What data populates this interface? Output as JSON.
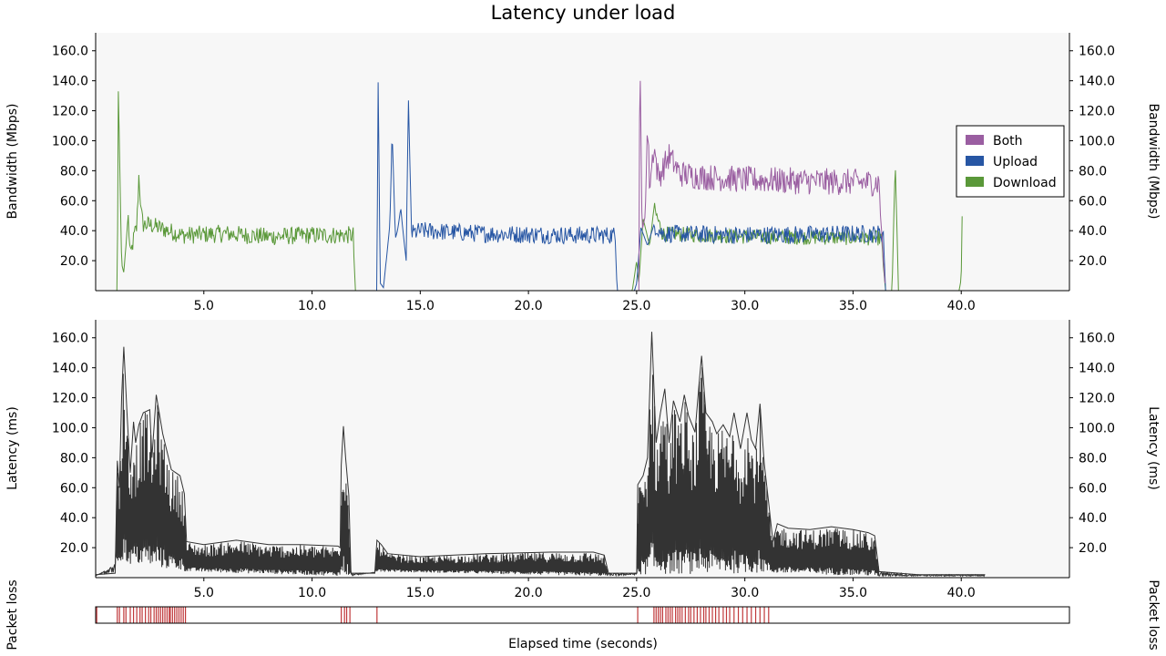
{
  "title": "Latency under load",
  "colors": {
    "plot_bg": "#f7f7f7",
    "both": "#9a5ea1",
    "upload": "#2756a4",
    "download": "#5a9839",
    "latency": "#333333",
    "loss": "#c0393b"
  },
  "chart_data": [
    {
      "type": "line",
      "panel": "bandwidth",
      "ylabel_left": "Bandwidth (Mbps)",
      "ylabel_right": "Bandwidth (Mbps)",
      "xlim": [
        0,
        45
      ],
      "ylim": [
        0,
        172
      ],
      "xticks": [
        "5.0",
        "10.0",
        "15.0",
        "20.0",
        "25.0",
        "30.0",
        "35.0",
        "40.0"
      ],
      "yticks": [
        "20.0",
        "40.0",
        "60.0",
        "80.0",
        "100.0",
        "120.0",
        "140.0",
        "160.0"
      ],
      "legend": {
        "position": "right",
        "entries": [
          "Both",
          "Upload",
          "Download"
        ]
      },
      "series": [
        {
          "name": "Download",
          "color": "download",
          "points": [
            [
              0,
              0
            ],
            [
              1.0,
              0
            ],
            [
              1.05,
              133
            ],
            [
              1.2,
              18
            ],
            [
              1.3,
              12
            ],
            [
              1.4,
              30
            ],
            [
              1.5,
              50
            ],
            [
              1.6,
              22
            ],
            [
              1.8,
              38
            ],
            [
              1.9,
              42
            ],
            [
              2.0,
              78
            ],
            [
              2.1,
              52
            ],
            [
              2.2,
              44
            ],
            [
              2.5,
              44
            ],
            [
              4.0,
              37
            ],
            [
              6.0,
              38
            ],
            [
              8.0,
              36
            ],
            [
              10.0,
              37
            ],
            [
              11.9,
              37
            ],
            [
              12.0,
              0
            ],
            [
              24.8,
              0
            ],
            [
              25.0,
              20
            ],
            [
              25.1,
              5
            ],
            [
              25.3,
              48
            ],
            [
              25.6,
              30
            ],
            [
              25.8,
              55
            ],
            [
              26.2,
              38
            ],
            [
              30.0,
              36
            ],
            [
              36.3,
              35
            ],
            [
              36.5,
              0
            ],
            [
              36.8,
              0
            ],
            [
              36.95,
              86
            ],
            [
              37.1,
              0
            ],
            [
              39.9,
              0
            ],
            [
              40.0,
              8
            ],
            [
              40.05,
              60
            ]
          ],
          "noise": {
            "from": 1.5,
            "to": 12.0,
            "amplitude": 6
          },
          "noise2": {
            "from": 25.8,
            "to": 36.4,
            "amplitude": 5
          }
        },
        {
          "name": "Upload",
          "color": "upload",
          "points": [
            [
              0,
              0
            ],
            [
              13.0,
              0
            ],
            [
              13.05,
              146
            ],
            [
              13.15,
              5
            ],
            [
              13.3,
              2
            ],
            [
              13.5,
              30
            ],
            [
              13.6,
              45
            ],
            [
              13.7,
              107
            ],
            [
              13.85,
              35
            ],
            [
              13.95,
              40
            ],
            [
              14.1,
              55
            ],
            [
              14.2,
              40
            ],
            [
              14.35,
              20
            ],
            [
              14.45,
              130
            ],
            [
              14.6,
              38
            ],
            [
              15.0,
              40
            ],
            [
              18.0,
              38
            ],
            [
              22.0,
              37
            ],
            [
              24.0,
              37
            ],
            [
              24.1,
              0
            ],
            [
              24.9,
              0
            ],
            [
              25.0,
              5
            ],
            [
              25.2,
              42
            ],
            [
              25.5,
              30
            ],
            [
              25.8,
              44
            ],
            [
              26.2,
              38
            ],
            [
              30.0,
              37
            ],
            [
              36.4,
              38
            ],
            [
              36.5,
              0
            ],
            [
              45,
              0
            ]
          ],
          "noise": {
            "from": 14.6,
            "to": 24.0,
            "amplitude": 6
          },
          "noise2": {
            "from": 25.8,
            "to": 36.4,
            "amplitude": 6
          }
        },
        {
          "name": "Both",
          "color": "both",
          "points": [
            [
              25.1,
              0
            ],
            [
              25.15,
              165
            ],
            [
              25.25,
              40
            ],
            [
              25.4,
              50
            ],
            [
              25.5,
              113
            ],
            [
              25.6,
              70
            ],
            [
              25.8,
              97
            ],
            [
              26.0,
              75
            ],
            [
              26.5,
              90
            ],
            [
              27.0,
              78
            ],
            [
              28.0,
              76
            ],
            [
              30.0,
              74
            ],
            [
              33.0,
              73
            ],
            [
              36.2,
              72
            ],
            [
              36.4,
              20
            ],
            [
              36.5,
              0
            ]
          ],
          "noise": {
            "from": 25.5,
            "to": 36.3,
            "amplitude": 9
          }
        }
      ]
    },
    {
      "type": "line",
      "panel": "latency",
      "ylabel_left": "Latency (ms)",
      "ylabel_right": "Latency (ms)",
      "xlim": [
        0,
        45
      ],
      "ylim": [
        0,
        172
      ],
      "xticks": [
        "5.0",
        "10.0",
        "15.0",
        "20.0",
        "25.0",
        "30.0",
        "35.0",
        "40.0"
      ],
      "yticks": [
        "20.0",
        "40.0",
        "60.0",
        "80.0",
        "100.0",
        "120.0",
        "140.0",
        "160.0"
      ],
      "series": [
        {
          "name": "",
          "color": "latency",
          "envelope": [
            [
              0.0,
              2
            ],
            [
              0.9,
              3
            ],
            [
              1.0,
              78
            ],
            [
              1.1,
              60
            ],
            [
              1.2,
              120
            ],
            [
              1.3,
              154
            ],
            [
              1.45,
              110
            ],
            [
              1.6,
              70
            ],
            [
              1.75,
              104
            ],
            [
              1.85,
              90
            ],
            [
              2.0,
              102
            ],
            [
              2.2,
              110
            ],
            [
              2.5,
              112
            ],
            [
              2.6,
              80
            ],
            [
              2.8,
              122
            ],
            [
              3.1,
              96
            ],
            [
              3.3,
              84
            ],
            [
              3.5,
              72
            ],
            [
              3.7,
              70
            ],
            [
              3.9,
              68
            ],
            [
              4.1,
              56
            ],
            [
              4.2,
              24
            ],
            [
              5.0,
              22
            ],
            [
              6.5,
              25
            ],
            [
              8.0,
              22
            ],
            [
              9.5,
              22
            ],
            [
              11.2,
              21
            ],
            [
              11.3,
              20
            ],
            [
              11.35,
              75
            ],
            [
              11.45,
              101
            ],
            [
              11.55,
              80
            ],
            [
              11.7,
              55
            ],
            [
              11.8,
              3
            ],
            [
              12.9,
              3
            ],
            [
              13.0,
              25
            ],
            [
              13.2,
              22
            ],
            [
              13.5,
              16
            ],
            [
              15.0,
              14
            ],
            [
              18.0,
              16
            ],
            [
              21.0,
              17
            ],
            [
              23.0,
              17
            ],
            [
              23.5,
              15
            ],
            [
              23.7,
              3
            ],
            [
              25.0,
              3
            ],
            [
              25.05,
              62
            ],
            [
              25.3,
              68
            ],
            [
              25.5,
              80
            ],
            [
              25.7,
              164
            ],
            [
              25.9,
              90
            ],
            [
              26.1,
              110
            ],
            [
              26.3,
              126
            ],
            [
              26.5,
              90
            ],
            [
              26.7,
              118
            ],
            [
              27.0,
              104
            ],
            [
              27.2,
              122
            ],
            [
              27.4,
              108
            ],
            [
              27.7,
              97
            ],
            [
              27.9,
              132
            ],
            [
              28.0,
              148
            ],
            [
              28.2,
              110
            ],
            [
              28.5,
              104
            ],
            [
              28.7,
              96
            ],
            [
              29.0,
              102
            ],
            [
              29.3,
              94
            ],
            [
              29.5,
              110
            ],
            [
              29.8,
              86
            ],
            [
              30.1,
              110
            ],
            [
              30.3,
              92
            ],
            [
              30.5,
              86
            ],
            [
              30.7,
              116
            ],
            [
              30.9,
              76
            ],
            [
              31.1,
              50
            ],
            [
              31.3,
              24
            ],
            [
              31.5,
              36
            ],
            [
              32.0,
              33
            ],
            [
              33.0,
              32
            ],
            [
              34.0,
              34
            ],
            [
              35.0,
              32
            ],
            [
              35.7,
              30
            ],
            [
              36.0,
              28
            ],
            [
              36.2,
              4
            ],
            [
              38.0,
              2
            ],
            [
              41.1,
              2
            ]
          ],
          "floor": [
            [
              0.0,
              1
            ],
            [
              1.0,
              10
            ],
            [
              4.2,
              4
            ],
            [
              11.8,
              1
            ],
            [
              13.0,
              4
            ],
            [
              23.7,
              1
            ],
            [
              25.0,
              2
            ],
            [
              31.2,
              3
            ],
            [
              36.2,
              1
            ],
            [
              41.1,
              1
            ]
          ]
        }
      ]
    },
    {
      "type": "heatmap",
      "panel": "packet-loss",
      "ylabel_left": "Packet loss",
      "ylabel_right": "Packet loss",
      "xlabel": "Elapsed time (seconds)",
      "xlim": [
        0,
        45
      ],
      "loss_times": [
        0.05,
        1.0,
        1.1,
        1.3,
        1.4,
        1.6,
        1.75,
        1.9,
        2.05,
        2.15,
        2.3,
        2.45,
        2.55,
        2.7,
        2.8,
        2.9,
        3.0,
        3.1,
        3.2,
        3.3,
        3.4,
        3.45,
        3.55,
        3.65,
        3.75,
        3.85,
        3.95,
        4.05,
        4.15,
        11.35,
        11.5,
        11.6,
        11.75,
        13.0,
        25.05,
        25.8,
        25.9,
        26.0,
        26.1,
        26.2,
        26.35,
        26.45,
        26.55,
        26.65,
        26.8,
        26.9,
        27.0,
        27.1,
        27.25,
        27.4,
        27.5,
        27.65,
        27.8,
        27.95,
        28.1,
        28.2,
        28.35,
        28.5,
        28.65,
        28.8,
        29.0,
        29.15,
        29.3,
        29.5,
        29.7,
        29.9,
        30.1,
        30.3,
        30.5,
        30.7,
        30.9,
        31.1
      ]
    }
  ]
}
